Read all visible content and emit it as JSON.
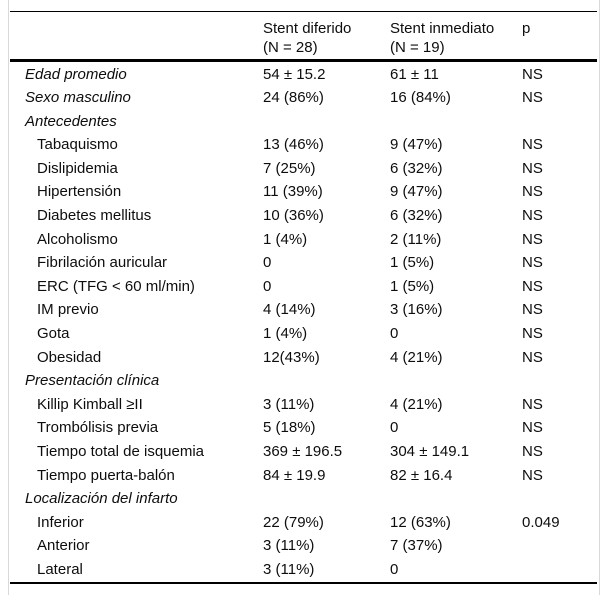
{
  "table": {
    "header": {
      "group1": {
        "title": "Stent diferido",
        "n": "(N = 28)"
      },
      "group2": {
        "title": "Stent inmediato",
        "n": "(N = 19)"
      },
      "p_label": "p"
    },
    "rows": [
      {
        "label": "Edad promedio",
        "indent": false,
        "v1": "54 ± 15.2",
        "v2": "61 ± 11",
        "p": "NS"
      },
      {
        "label": "Sexo masculino",
        "indent": false,
        "v1": "24 (86%)",
        "v2": "16 (84%)",
        "p": "NS"
      },
      {
        "label": "Antecedentes",
        "indent": false,
        "v1": "",
        "v2": "",
        "p": ""
      },
      {
        "label": "Tabaquismo",
        "indent": true,
        "v1": "13 (46%)",
        "v2": "9 (47%)",
        "p": "NS"
      },
      {
        "label": "Dislipidemia",
        "indent": true,
        "v1": "7 (25%)",
        "v2": "6 (32%)",
        "p": "NS"
      },
      {
        "label": "Hipertensión",
        "indent": true,
        "v1": "11 (39%)",
        "v2": "9 (47%)",
        "p": "NS"
      },
      {
        "label": "Diabetes mellitus",
        "indent": true,
        "v1": "10 (36%)",
        "v2": "6 (32%)",
        "p": "NS"
      },
      {
        "label": "Alcoholismo",
        "indent": true,
        "v1": "1 (4%)",
        "v2": "2 (11%)",
        "p": "NS"
      },
      {
        "label": "Fibrilación auricular",
        "indent": true,
        "v1": "0",
        "v2": "1 (5%)",
        "p": "NS"
      },
      {
        "label": "ERC (TFG < 60 ml/min)",
        "indent": true,
        "v1": "0",
        "v2": "1 (5%)",
        "p": "NS"
      },
      {
        "label": "IM previo",
        "indent": true,
        "v1": "4 (14%)",
        "v2": "3 (16%)",
        "p": "NS"
      },
      {
        "label": "Gota",
        "indent": true,
        "v1": "1 (4%)",
        "v2": "0",
        "p": "NS"
      },
      {
        "label": "Obesidad",
        "indent": true,
        "v1": "12(43%)",
        "v2": "4 (21%)",
        "p": "NS"
      },
      {
        "label": "Presentación clínica",
        "indent": false,
        "v1": "",
        "v2": "",
        "p": ""
      },
      {
        "label": "Killip Kimball ≥II",
        "indent": true,
        "v1": "3 (11%)",
        "v2": "4 (21%)",
        "p": "NS"
      },
      {
        "label": "Trombólisis previa",
        "indent": true,
        "v1": "5 (18%)",
        "v2": "0",
        "p": "NS"
      },
      {
        "label": "Tiempo total de isquemia",
        "indent": true,
        "v1": "369 ± 196.5",
        "v2": "304 ± 149.1",
        "p": "NS"
      },
      {
        "label": "Tiempo puerta-balón",
        "indent": true,
        "v1": "84 ± 19.9",
        "v2": "82 ± 16.4",
        "p": "NS"
      },
      {
        "label": "Localización del infarto",
        "indent": false,
        "v1": "",
        "v2": "",
        "p": ""
      },
      {
        "label": "Inferior",
        "indent": true,
        "v1": "22 (79%)",
        "v2": "12 (63%)",
        "p": "0.049"
      },
      {
        "label": "Anterior",
        "indent": true,
        "v1": "3 (11%)",
        "v2": "7 (37%)",
        "p": ""
      },
      {
        "label": "Lateral",
        "indent": true,
        "v1": "3 (11%)",
        "v2": "0",
        "p": ""
      }
    ]
  }
}
